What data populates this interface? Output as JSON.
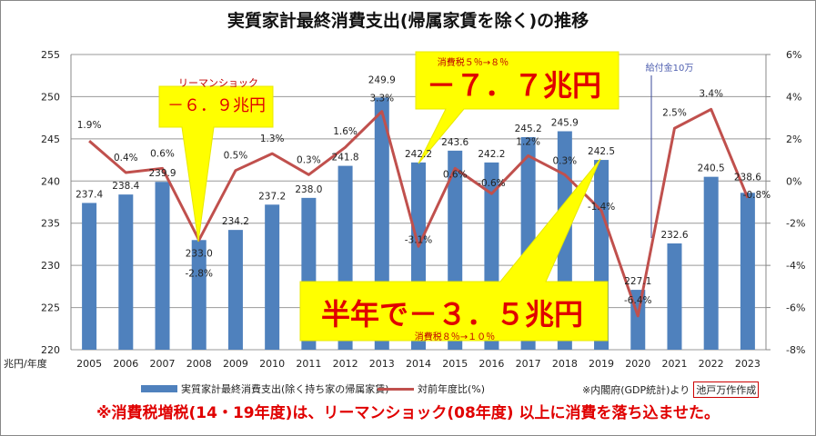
{
  "chart_data": {
    "type": "bar+line",
    "title": "実質家計最終消費支出(帰属家賃を除く)の推移",
    "xlabel": "兆円/年度",
    "categories": [
      "2005",
      "2006",
      "2007",
      "2008",
      "2009",
      "2010",
      "2011",
      "2012",
      "2013",
      "2014",
      "2015",
      "2016",
      "2017",
      "2018",
      "2019",
      "2020",
      "2021",
      "2022",
      "2023"
    ],
    "series": [
      {
        "name": "実質家計最終消費支出(除く持ち家の帰属家賃)",
        "type": "bar",
        "axis": "left",
        "color": "#4f81bd",
        "values": [
          237.4,
          238.4,
          239.9,
          233.0,
          234.2,
          237.2,
          238.0,
          241.8,
          249.9,
          242.2,
          243.6,
          242.2,
          245.2,
          245.9,
          242.5,
          227.1,
          232.6,
          240.5,
          238.6
        ],
        "labels": [
          "237.4",
          "238.4",
          "239.9",
          "233.0",
          "234.2",
          "237.2",
          "238.0",
          "241.8",
          "249.9",
          "242.2",
          "243.6",
          "242.2",
          "245.2",
          "245.9",
          "242.5",
          "227.1",
          "232.6",
          "240.5",
          "238.6"
        ]
      },
      {
        "name": "対前年度比(%)",
        "type": "line",
        "axis": "right",
        "color": "#c0504d",
        "values": [
          1.9,
          0.4,
          0.6,
          -2.8,
          0.5,
          1.3,
          0.3,
          1.6,
          3.3,
          -3.1,
          0.6,
          -0.6,
          1.2,
          0.3,
          -1.4,
          -6.4,
          2.5,
          3.4,
          -0.8
        ],
        "labels": [
          "1.9%",
          "0.4%",
          "0.6%",
          "-2.8%",
          "0.5%",
          "1.3%",
          "0.3%",
          "1.6%",
          "3.3%",
          "-3.1%",
          "0.6%",
          "-0.6%",
          "1.2%",
          "0.3%",
          "-1.4%",
          "-6.4%",
          "2.5%",
          "3.4%",
          "-0.8%"
        ]
      }
    ],
    "ylim": [
      220,
      255
    ],
    "yticks": [
      "220",
      "225",
      "230",
      "235",
      "240",
      "245",
      "250",
      "255"
    ],
    "y2lim": [
      -8,
      6
    ],
    "y2ticks": [
      "-8%",
      "-6%",
      "-4%",
      "-2%",
      "0%",
      "2%",
      "4%",
      "6%"
    ],
    "grid": true,
    "legend_position": "bottom",
    "annotations": {
      "lehman_title": "リーマンショック",
      "lehman_value": "－６．９兆円",
      "tax8_title": "消費税５％→８％",
      "tax8_value": "－７．７兆円",
      "tax10_value": "半年で－３．５兆円",
      "tax10_title": "消費税８％→１０％",
      "benefit": "給付金10万"
    }
  },
  "legend": {
    "bar_label": "実質家計最終消費支出(除く持ち家の帰属家賃)",
    "line_label": "対前年度比(%)",
    "source": "※内閣府(GDP統計)より",
    "author": "池戸万作作成"
  },
  "footnote": "※消費税増税(14・19年度)は、リーマンショック(08年度) 以上に消費を落ち込ませた。"
}
